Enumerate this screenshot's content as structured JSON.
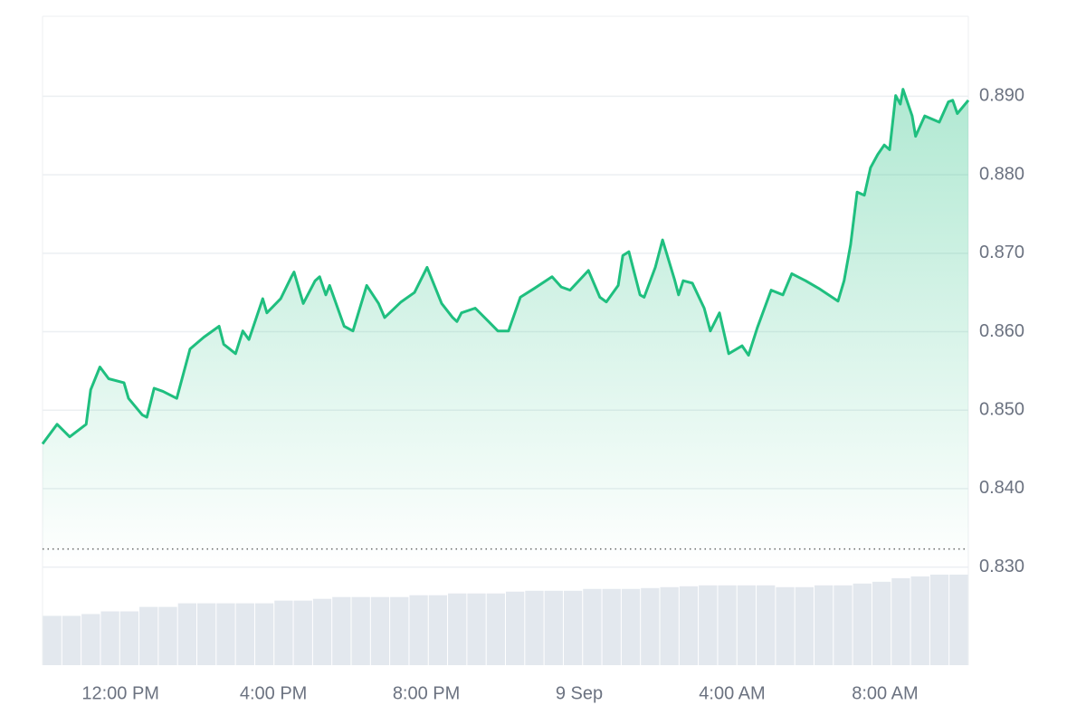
{
  "chart_data": {
    "type": "area-line",
    "x": [
      9.96,
      10.34,
      10.67,
      11.1,
      11.22,
      11.46,
      11.69,
      12.09,
      12.21,
      12.57,
      12.69,
      12.88,
      13.11,
      13.47,
      13.82,
      14.18,
      14.58,
      14.7,
      15.01,
      15.2,
      15.36,
      15.72,
      15.83,
      16.19,
      16.47,
      16.54,
      16.78,
      17.09,
      17.21,
      17.37,
      17.47,
      17.85,
      18.08,
      18.44,
      18.75,
      18.91,
      19.34,
      19.69,
      20.02,
      20.4,
      20.69,
      20.8,
      20.92,
      21.28,
      21.63,
      21.87,
      22.15,
      22.46,
      22.82,
      23.29,
      23.53,
      23.76,
      24.24,
      24.54,
      24.71,
      25.02,
      25.14,
      25.3,
      25.59,
      25.7,
      25.99,
      26.18,
      26.49,
      26.6,
      26.72,
      26.96,
      27.27,
      27.43,
      27.67,
      27.91,
      28.26,
      28.43,
      28.66,
      29.02,
      29.33,
      29.56,
      29.92,
      30.27,
      30.77,
      30.93,
      31.1,
      31.27,
      31.46,
      31.62,
      31.81,
      31.98,
      32.12,
      32.28,
      32.4,
      32.47,
      32.71,
      32.8,
      33.04,
      33.42,
      33.66,
      33.77,
      33.89,
      34.18
    ],
    "values": [
      0.8457,
      0.8482,
      0.8466,
      0.8482,
      0.8526,
      0.8555,
      0.854,
      0.8535,
      0.8515,
      0.8494,
      0.8491,
      0.8528,
      0.8524,
      0.8515,
      0.8578,
      0.8593,
      0.8607,
      0.8584,
      0.8572,
      0.8601,
      0.859,
      0.8642,
      0.8624,
      0.8642,
      0.867,
      0.8676,
      0.8636,
      0.8665,
      0.867,
      0.8647,
      0.8659,
      0.8607,
      0.8601,
      0.8659,
      0.8636,
      0.8618,
      0.8638,
      0.865,
      0.8682,
      0.8636,
      0.8618,
      0.8613,
      0.8624,
      0.863,
      0.8613,
      0.8601,
      0.8601,
      0.8644,
      0.8655,
      0.867,
      0.8657,
      0.8653,
      0.8678,
      0.8644,
      0.8638,
      0.8659,
      0.8697,
      0.8702,
      0.8647,
      0.8644,
      0.8682,
      0.8717,
      0.8667,
      0.8647,
      0.8665,
      0.8662,
      0.863,
      0.8601,
      0.8624,
      0.8572,
      0.8582,
      0.857,
      0.8605,
      0.8653,
      0.8647,
      0.8674,
      0.8665,
      0.8655,
      0.8639,
      0.8665,
      0.8711,
      0.8778,
      0.8774,
      0.8809,
      0.8826,
      0.8838,
      0.8832,
      0.8901,
      0.889,
      0.8909,
      0.8875,
      0.8849,
      0.8875,
      0.8867,
      0.8893,
      0.8895,
      0.8878,
      0.8895
    ],
    "color": "#1fbf7f",
    "xlim": [
      9.96,
      34.18
    ],
    "xticks": [
      {
        "value": 12,
        "label": "12:00 PM"
      },
      {
        "value": 16,
        "label": "4:00 PM"
      },
      {
        "value": 20,
        "label": "8:00 PM"
      },
      {
        "value": 24,
        "label": "9 Sep"
      },
      {
        "value": 28,
        "label": "4:00 AM"
      },
      {
        "value": 32,
        "label": "8:00 AM"
      }
    ],
    "ylim": [
      0.8175,
      0.9002
    ],
    "yticks": [
      {
        "value": 0.83,
        "label": "0.830"
      },
      {
        "value": 0.84,
        "label": "0.840"
      },
      {
        "value": 0.85,
        "label": "0.850"
      },
      {
        "value": 0.86,
        "label": "0.860"
      },
      {
        "value": 0.87,
        "label": "0.870"
      },
      {
        "value": 0.88,
        "label": "0.880"
      },
      {
        "value": 0.89,
        "label": "0.890"
      }
    ],
    "grid": true,
    "reference_line": 0.8323,
    "volume": {
      "color": "#e3e8ee",
      "lim": [
        0,
        110
      ],
      "values": [
        55,
        55,
        57,
        60,
        60,
        65,
        65,
        69,
        69,
        69,
        69,
        69,
        72,
        72,
        74,
        76,
        76,
        76,
        76,
        78,
        78,
        80,
        80,
        80,
        82,
        83,
        83,
        83,
        85,
        85,
        85,
        86,
        87,
        88,
        89,
        89,
        89,
        89,
        87,
        87,
        89,
        89,
        91,
        93,
        97,
        99,
        101,
        101
      ]
    }
  }
}
